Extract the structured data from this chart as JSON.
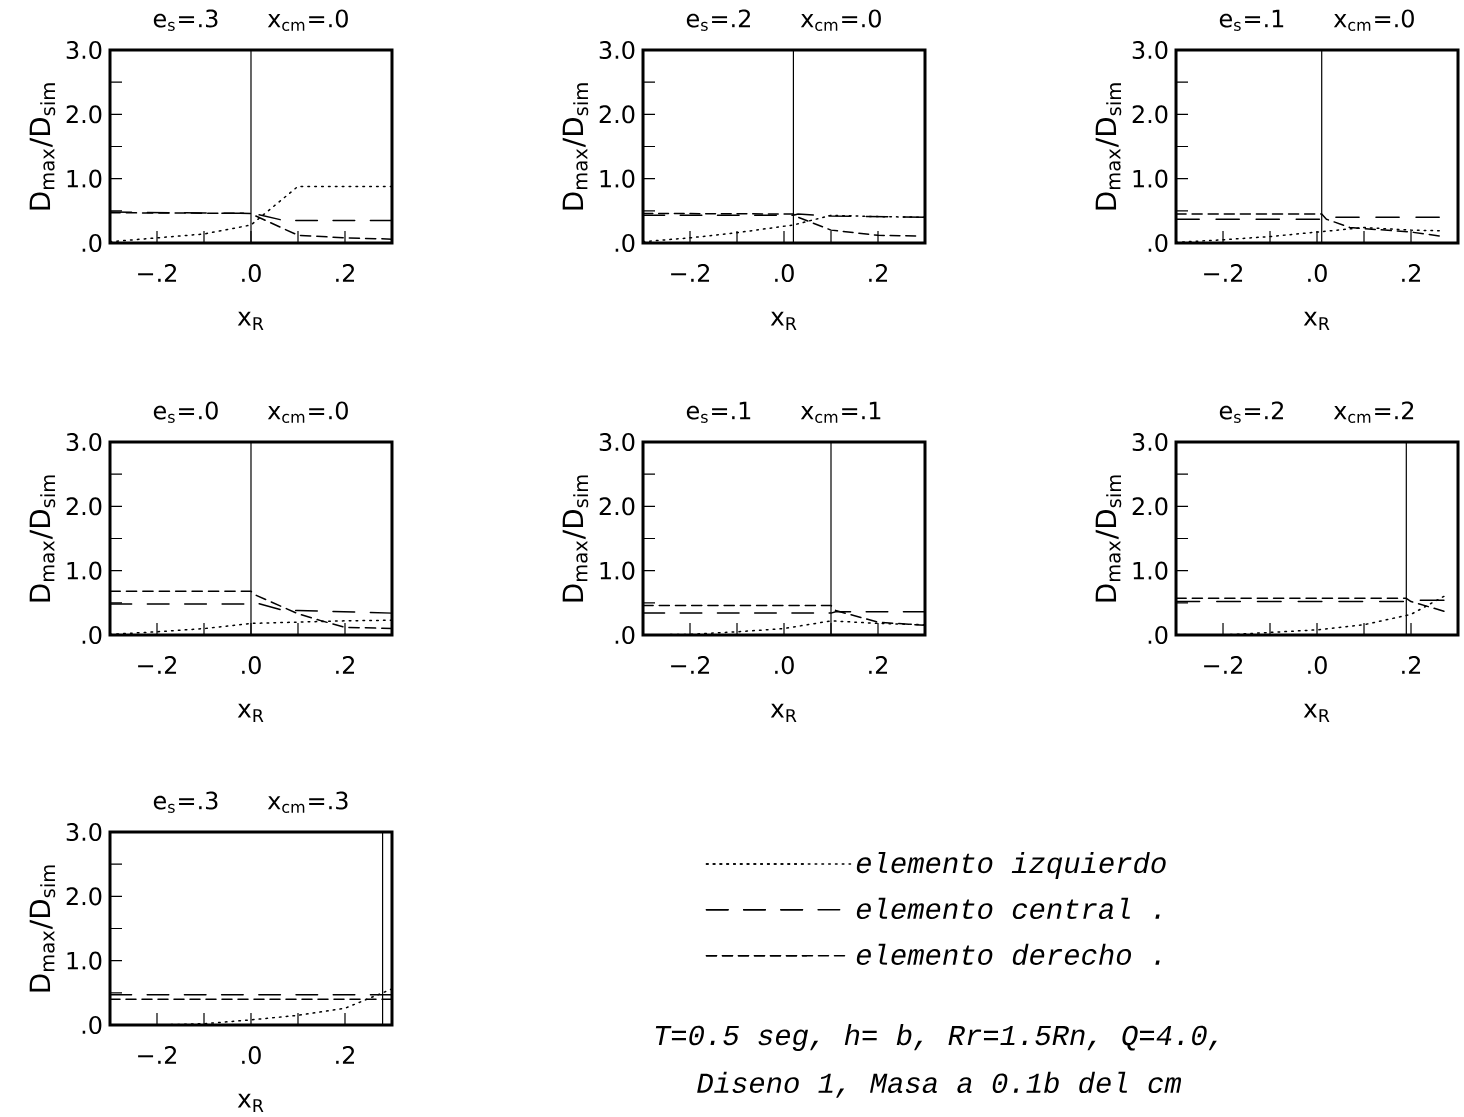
{
  "chart_data": [
    {
      "type": "line",
      "title": "e$_{s}$=.3 x$_{cm}$=.0",
      "xlabel": "x$_{R}$",
      "ylabel": "D$_{max}$/D$_{sim}$",
      "xlim": [
        -0.3,
        0.3
      ],
      "ylim": [
        0,
        3
      ],
      "xticks": [
        {
          "value": -0.2,
          "label": "−.2"
        },
        {
          "value": -0.1,
          "label": null
        },
        {
          "value": 0,
          "label": ".0"
        },
        {
          "value": 0.1,
          "label": null
        },
        {
          "value": 0.2,
          "label": ".2"
        }
      ],
      "yticks": [
        {
          "value": 0,
          "label": ".0"
        },
        {
          "value": 0.5,
          "label": null
        },
        {
          "value": 1,
          "label": "1.0"
        },
        {
          "value": 1.5,
          "label": null
        },
        {
          "value": 2,
          "label": "2.0"
        },
        {
          "value": 2.5,
          "label": null
        },
        {
          "value": 3,
          "label": "3.0"
        }
      ],
      "ref_lines": [
        {
          "axis": "x",
          "value": 0
        }
      ],
      "series": [
        {
          "color": "#000000",
          "line_style": "dotted",
          "x": [
            -0.3,
            -0.2,
            -0.1,
            0,
            0.1,
            0.3
          ],
          "values": [
            0.02,
            0.08,
            0.14,
            0.28,
            0.88,
            0.88
          ]
        },
        {
          "color": "#000000",
          "line_style": "dashed",
          "x": [
            -0.3,
            0,
            0.01,
            0.07,
            0.3
          ],
          "values": [
            0.48,
            0.46,
            0.45,
            0.35,
            0.35
          ]
        },
        {
          "color": "#000000",
          "line_style": "dashed",
          "x": [
            -0.3,
            0,
            0.01,
            0.1,
            0.2,
            0.3
          ],
          "values": [
            0.47,
            0.46,
            0.42,
            0.12,
            0.08,
            0.06
          ]
        }
      ]
    },
    {
      "type": "line",
      "title": "e$_{s}$=.2 x$_{cm}$=.0",
      "xlabel": "x$_{R}$",
      "ylabel": "D$_{max}$/D$_{sim}$",
      "xlim": [
        -0.3,
        0.3
      ],
      "ylim": [
        0,
        3
      ],
      "xticks": [
        {
          "value": -0.2,
          "label": "−.2"
        },
        {
          "value": -0.1,
          "label": null
        },
        {
          "value": 0,
          "label": ".0"
        },
        {
          "value": 0.1,
          "label": null
        },
        {
          "value": 0.2,
          "label": ".2"
        }
      ],
      "yticks": [
        {
          "value": 0,
          "label": ".0"
        },
        {
          "value": 0.5,
          "label": null
        },
        {
          "value": 1,
          "label": "1.0"
        },
        {
          "value": 1.5,
          "label": null
        },
        {
          "value": 2,
          "label": "2.0"
        },
        {
          "value": 2.5,
          "label": null
        },
        {
          "value": 3,
          "label": "3.0"
        }
      ],
      "ref_lines": [
        {
          "axis": "x",
          "value": 0.02
        }
      ],
      "series": [
        {
          "color": "#000000",
          "line_style": "dotted",
          "x": [
            -0.3,
            -0.2,
            -0.1,
            0.02,
            0.1,
            0.2,
            0.3
          ],
          "values": [
            0.02,
            0.08,
            0.16,
            0.28,
            0.43,
            0.41,
            0.4
          ]
        },
        {
          "color": "#000000",
          "line_style": "dashed",
          "x": [
            -0.3,
            0.02,
            0.03,
            0.1,
            0.3
          ],
          "values": [
            0.43,
            0.43,
            0.45,
            0.42,
            0.4
          ]
        },
        {
          "color": "#000000",
          "line_style": "dashed",
          "x": [
            -0.3,
            0.02,
            0.03,
            0.1,
            0.2,
            0.28
          ],
          "values": [
            0.46,
            0.45,
            0.4,
            0.2,
            0.12,
            0.11
          ]
        }
      ]
    },
    {
      "type": "line",
      "title": "e$_{s}$=.1 x$_{cm}$=.0",
      "xlabel": "x$_{R}$",
      "ylabel": "D$_{max}$/D$_{sim}$",
      "xlim": [
        -0.3,
        0.3
      ],
      "ylim": [
        0,
        3
      ],
      "xticks": [
        {
          "value": -0.2,
          "label": "−.2"
        },
        {
          "value": -0.1,
          "label": null
        },
        {
          "value": 0,
          "label": ".0"
        },
        {
          "value": 0.1,
          "label": null
        },
        {
          "value": 0.2,
          "label": ".2"
        }
      ],
      "yticks": [
        {
          "value": 0,
          "label": ".0"
        },
        {
          "value": 0.5,
          "label": null
        },
        {
          "value": 1,
          "label": "1.0"
        },
        {
          "value": 1.5,
          "label": null
        },
        {
          "value": 2,
          "label": "2.0"
        },
        {
          "value": 2.5,
          "label": null
        },
        {
          "value": 3,
          "label": "3.0"
        }
      ],
      "ref_lines": [
        {
          "axis": "x",
          "value": 0.01
        }
      ],
      "series": [
        {
          "color": "#000000",
          "line_style": "dotted",
          "x": [
            -0.3,
            -0.2,
            -0.1,
            0,
            0.1,
            0.2,
            0.26
          ],
          "values": [
            0.01,
            0.05,
            0.1,
            0.17,
            0.24,
            0.2,
            0.19
          ]
        },
        {
          "color": "#000000",
          "line_style": "dashed",
          "x": [
            -0.3,
            0.01,
            0.02,
            0.1,
            0.26
          ],
          "values": [
            0.37,
            0.37,
            0.4,
            0.4,
            0.4
          ]
        },
        {
          "color": "#000000",
          "line_style": "dashed",
          "x": [
            -0.3,
            0.01,
            0.02,
            0.07,
            0.2,
            0.26
          ],
          "values": [
            0.45,
            0.45,
            0.37,
            0.24,
            0.17,
            0.11
          ]
        }
      ]
    },
    {
      "type": "line",
      "title": "e$_{s}$=.0 x$_{cm}$=.0",
      "xlabel": "x$_{R}$",
      "ylabel": "D$_{max}$/D$_{sim}$",
      "xlim": [
        -0.3,
        0.3
      ],
      "ylim": [
        0,
        3
      ],
      "xticks": [
        {
          "value": -0.2,
          "label": "−.2"
        },
        {
          "value": -0.1,
          "label": null
        },
        {
          "value": 0,
          "label": ".0"
        },
        {
          "value": 0.1,
          "label": null
        },
        {
          "value": 0.2,
          "label": ".2"
        }
      ],
      "yticks": [
        {
          "value": 0,
          "label": ".0"
        },
        {
          "value": 0.5,
          "label": null
        },
        {
          "value": 1,
          "label": "1.0"
        },
        {
          "value": 1.5,
          "label": null
        },
        {
          "value": 2,
          "label": "2.0"
        },
        {
          "value": 2.5,
          "label": null
        },
        {
          "value": 3,
          "label": "3.0"
        }
      ],
      "ref_lines": [
        {
          "axis": "x",
          "value": 0
        }
      ],
      "series": [
        {
          "color": "#000000",
          "line_style": "dotted",
          "x": [
            -0.3,
            -0.2,
            -0.1,
            0,
            0.1,
            0.2,
            0.3
          ],
          "values": [
            0.01,
            0.05,
            0.1,
            0.18,
            0.2,
            0.22,
            0.23
          ]
        },
        {
          "color": "#000000",
          "line_style": "dashed",
          "x": [
            -0.3,
            0,
            0.01,
            0.07,
            0.1,
            0.3
          ],
          "values": [
            0.48,
            0.48,
            0.5,
            0.38,
            0.38,
            0.34
          ]
        },
        {
          "color": "#000000",
          "line_style": "dashed",
          "x": [
            -0.3,
            0,
            0.01,
            0.1,
            0.15,
            0.2,
            0.3
          ],
          "values": [
            0.68,
            0.68,
            0.62,
            0.33,
            0.22,
            0.12,
            0.1
          ]
        }
      ]
    },
    {
      "type": "line",
      "title": "e$_{s}$=.1 x$_{cm}$=.1",
      "xlabel": "x$_{R}$",
      "ylabel": "D$_{max}$/D$_{sim}$",
      "xlim": [
        -0.3,
        0.3
      ],
      "ylim": [
        0,
        3
      ],
      "xticks": [
        {
          "value": -0.2,
          "label": "−.2"
        },
        {
          "value": -0.1,
          "label": null
        },
        {
          "value": 0,
          "label": ".0"
        },
        {
          "value": 0.1,
          "label": null
        },
        {
          "value": 0.2,
          "label": ".2"
        }
      ],
      "yticks": [
        {
          "value": 0,
          "label": ".0"
        },
        {
          "value": 0.5,
          "label": null
        },
        {
          "value": 1,
          "label": "1.0"
        },
        {
          "value": 1.5,
          "label": null
        },
        {
          "value": 2,
          "label": "2.0"
        },
        {
          "value": 2.5,
          "label": null
        },
        {
          "value": 3,
          "label": "3.0"
        }
      ],
      "ref_lines": [
        {
          "axis": "x",
          "value": 0.1
        }
      ],
      "series": [
        {
          "color": "#000000",
          "line_style": "dotted",
          "x": [
            -0.3,
            -0.2,
            -0.1,
            0,
            0.1,
            0.2,
            0.3
          ],
          "values": [
            0,
            0.01,
            0.05,
            0.1,
            0.22,
            0.18,
            0.16
          ]
        },
        {
          "color": "#000000",
          "line_style": "dashed",
          "x": [
            -0.3,
            0.1,
            0.11,
            0.3
          ],
          "values": [
            0.34,
            0.34,
            0.36,
            0.36
          ]
        },
        {
          "color": "#000000",
          "line_style": "dashed",
          "x": [
            -0.3,
            0.1,
            0.11,
            0.2,
            0.3
          ],
          "values": [
            0.46,
            0.46,
            0.38,
            0.2,
            0.15
          ]
        }
      ]
    },
    {
      "type": "line",
      "title": "e$_{s}$=.2 x$_{cm}$=.2",
      "xlabel": "x$_{R}$",
      "ylabel": "D$_{max}$/D$_{sim}$",
      "xlim": [
        -0.3,
        0.3
      ],
      "ylim": [
        0,
        3
      ],
      "xticks": [
        {
          "value": -0.2,
          "label": "−.2"
        },
        {
          "value": -0.1,
          "label": null
        },
        {
          "value": 0,
          "label": ".0"
        },
        {
          "value": 0.1,
          "label": null
        },
        {
          "value": 0.2,
          "label": ".2"
        }
      ],
      "yticks": [
        {
          "value": 0,
          "label": ".0"
        },
        {
          "value": 0.5,
          "label": null
        },
        {
          "value": 1,
          "label": "1.0"
        },
        {
          "value": 1.5,
          "label": null
        },
        {
          "value": 2,
          "label": "2.0"
        },
        {
          "value": 2.5,
          "label": null
        },
        {
          "value": 3,
          "label": "3.0"
        }
      ],
      "ref_lines": [
        {
          "axis": "x",
          "value": 0.19
        }
      ],
      "series": [
        {
          "color": "#000000",
          "line_style": "dotted",
          "x": [
            -0.3,
            -0.2,
            -0.1,
            0,
            0.1,
            0.2,
            0.27
          ],
          "values": [
            0,
            0,
            0.04,
            0.08,
            0.16,
            0.32,
            0.6
          ]
        },
        {
          "color": "#000000",
          "line_style": "dashed",
          "x": [
            -0.3,
            0.19,
            0.2,
            0.27
          ],
          "values": [
            0.52,
            0.52,
            0.54,
            0.54
          ]
        },
        {
          "color": "#000000",
          "line_style": "dashed",
          "x": [
            -0.3,
            0.19,
            0.2,
            0.27
          ],
          "values": [
            0.57,
            0.57,
            0.52,
            0.37
          ]
        }
      ]
    },
    {
      "type": "line",
      "title": "e$_{s}$=.3 x$_{cm}$=.3",
      "xlabel": "x$_{R}$",
      "ylabel": "D$_{max}$/D$_{sim}$",
      "xlim": [
        -0.3,
        0.3
      ],
      "ylim": [
        0,
        3
      ],
      "xticks": [
        {
          "value": -0.2,
          "label": "−.2"
        },
        {
          "value": -0.1,
          "label": null
        },
        {
          "value": 0,
          "label": ".0"
        },
        {
          "value": 0.1,
          "label": null
        },
        {
          "value": 0.2,
          "label": ".2"
        }
      ],
      "yticks": [
        {
          "value": 0,
          "label": ".0"
        },
        {
          "value": 0.5,
          "label": null
        },
        {
          "value": 1,
          "label": "1.0"
        },
        {
          "value": 1.5,
          "label": null
        },
        {
          "value": 2,
          "label": "2.0"
        },
        {
          "value": 2.5,
          "label": null
        },
        {
          "value": 3,
          "label": "3.0"
        }
      ],
      "ref_lines": [
        {
          "axis": "x",
          "value": 0.28
        }
      ],
      "legend": "right",
      "annotations": [
        "T=0.5 seg, h= b, Rr=1.5Rn, Q=4.0,",
        "Diseno 1, Masa a 0.1b del cm"
      ],
      "series": [
        {
          "name": "elemento izquierdo",
          "color": "#000000",
          "line_style": "dotted",
          "x": [
            -0.3,
            -0.2,
            -0.1,
            0,
            0.1,
            0.2,
            0.28,
            0.3
          ],
          "values": [
            0,
            0,
            0.02,
            0.08,
            0.15,
            0.26,
            0.5,
            0.56
          ]
        },
        {
          "name": "elemento central .",
          "color": "#000000",
          "line_style": "dashed",
          "x": [
            -0.3,
            0.3
          ],
          "values": [
            0.47,
            0.47
          ]
        },
        {
          "name": "elemento derecho .",
          "color": "#000000",
          "line_style": "dashed",
          "x": [
            -0.3,
            0.3
          ],
          "values": [
            0.4,
            0.4
          ]
        }
      ]
    }
  ]
}
